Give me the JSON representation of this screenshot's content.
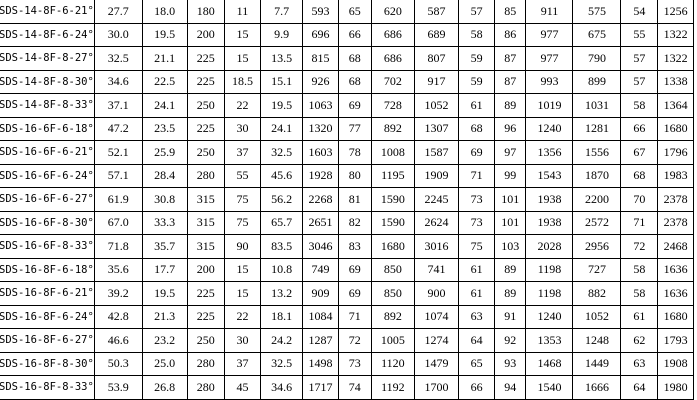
{
  "table": {
    "rows": [
      [
        "SDS-14-8F-6-21°",
        "27.7",
        "18.0",
        "180",
        "11",
        "7.7",
        "593",
        "65",
        "620",
        "587",
        "57",
        "85",
        "911",
        "575",
        "54",
        "1256"
      ],
      [
        "SDS-14-8F-6-24°",
        "30.0",
        "19.5",
        "200",
        "15",
        "9.9",
        "696",
        "66",
        "686",
        "689",
        "58",
        "86",
        "977",
        "675",
        "55",
        "1322"
      ],
      [
        "SDS-14-8F-8-27°",
        "32.5",
        "21.1",
        "225",
        "15",
        "13.5",
        "815",
        "68",
        "686",
        "807",
        "59",
        "87",
        "977",
        "790",
        "57",
        "1322"
      ],
      [
        "SDS-14-8F-8-30°",
        "34.6",
        "22.5",
        "225",
        "18.5",
        "15.1",
        "926",
        "68",
        "702",
        "917",
        "59",
        "87",
        "993",
        "899",
        "57",
        "1338"
      ],
      [
        "SDS-14-8F-8-33°",
        "37.1",
        "24.1",
        "250",
        "22",
        "19.5",
        "1063",
        "69",
        "728",
        "1052",
        "61",
        "89",
        "1019",
        "1031",
        "58",
        "1364"
      ],
      [
        "SDS-16-6F-6-18°",
        "47.2",
        "23.5",
        "225",
        "30",
        "24.1",
        "1320",
        "77",
        "892",
        "1307",
        "68",
        "96",
        "1240",
        "1281",
        "66",
        "1680"
      ],
      [
        "SDS-16-6F-6-21°",
        "52.1",
        "25.9",
        "250",
        "37",
        "32.5",
        "1603",
        "78",
        "1008",
        "1587",
        "69",
        "97",
        "1356",
        "1556",
        "67",
        "1796"
      ],
      [
        "SDS-16-6F-6-24°",
        "57.1",
        "28.4",
        "280",
        "55",
        "45.6",
        "1928",
        "80",
        "1195",
        "1909",
        "71",
        "99",
        "1543",
        "1870",
        "68",
        "1983"
      ],
      [
        "SDS-16-6F-6-27°",
        "61.9",
        "30.8",
        "315",
        "75",
        "56.2",
        "2268",
        "81",
        "1590",
        "2245",
        "73",
        "101",
        "1938",
        "2200",
        "70",
        "2378"
      ],
      [
        "SDS-16-6F-8-30°",
        "67.0",
        "33.3",
        "315",
        "75",
        "65.7",
        "2651",
        "82",
        "1590",
        "2624",
        "73",
        "101",
        "1938",
        "2572",
        "71",
        "2378"
      ],
      [
        "SDS-16-6F-8-33°",
        "71.8",
        "35.7",
        "315",
        "90",
        "83.5",
        "3046",
        "83",
        "1680",
        "3016",
        "75",
        "103",
        "2028",
        "2956",
        "72",
        "2468"
      ],
      [
        "SDS-16-8F-6-18°",
        "35.6",
        "17.7",
        "200",
        "15",
        "10.8",
        "749",
        "69",
        "850",
        "741",
        "61",
        "89",
        "1198",
        "727",
        "58",
        "1636"
      ],
      [
        "SDS-16-8F-6-21°",
        "39.2",
        "19.5",
        "225",
        "15",
        "13.2",
        "909",
        "69",
        "850",
        "900",
        "61",
        "89",
        "1198",
        "882",
        "58",
        "1636"
      ],
      [
        "SDS-16-8F-6-24°",
        "42.8",
        "21.3",
        "225",
        "22",
        "18.1",
        "1084",
        "71",
        "892",
        "1074",
        "63",
        "91",
        "1240",
        "1052",
        "61",
        "1680"
      ],
      [
        "SDS-16-8F-6-27°",
        "46.6",
        "23.2",
        "250",
        "30",
        "24.2",
        "1287",
        "72",
        "1005",
        "1274",
        "64",
        "92",
        "1353",
        "1248",
        "62",
        "1793"
      ],
      [
        "SDS-16-8F-8-30°",
        "50.3",
        "25.0",
        "280",
        "37",
        "32.5",
        "1498",
        "73",
        "1120",
        "1479",
        "65",
        "93",
        "1468",
        "1449",
        "63",
        "1908"
      ],
      [
        "SDS-16-8F-8-33°",
        "53.9",
        "26.8",
        "280",
        "45",
        "34.6",
        "1717",
        "74",
        "1192",
        "1700",
        "66",
        "94",
        "1540",
        "1666",
        "64",
        "1980"
      ]
    ]
  }
}
